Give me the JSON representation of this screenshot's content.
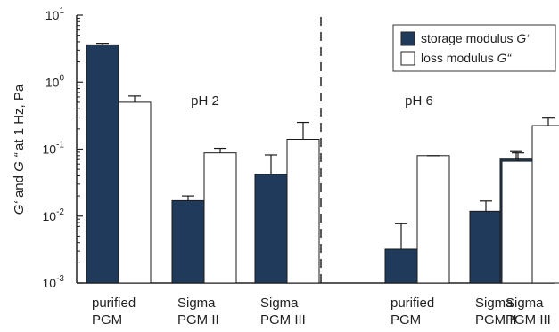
{
  "chart_data": {
    "type": "bar",
    "yscale": "log",
    "ylim": [
      0.001,
      10
    ],
    "ylabel": "G' and G'' at 1 Hz, Pa",
    "ylabel_parts": [
      "G‘",
      " and ",
      "G",
      " “",
      "at 1 Hz, Pa"
    ],
    "y_ticks": [
      {
        "base": "10",
        "exp": "1"
      },
      {
        "base": "10",
        "exp": "0"
      },
      {
        "base": "10",
        "exp": "-1"
      },
      {
        "base": "10",
        "exp": "-2"
      },
      {
        "base": "10",
        "exp": "-3"
      }
    ],
    "groups": [
      "pH 2",
      "pH 6"
    ],
    "categories": [
      {
        "line1": "purified",
        "line2": "PGM"
      },
      {
        "line1": "Sigma",
        "line2": "PGM II"
      },
      {
        "line1": "Sigma",
        "line2": "PGM III"
      },
      {
        "line1": "purified",
        "line2": "PGM"
      },
      {
        "line1": "Sigma",
        "line2": "PGM II"
      },
      {
        "line1": "Sigma",
        "line2": "PGM III"
      }
    ],
    "series": [
      {
        "name": "storage modulus G'",
        "label_text": "storage modulus ",
        "label_symbol": "G‘",
        "color": "#1f3a5a",
        "values": [
          3.6,
          0.017,
          0.042,
          0.0032,
          0.0118,
          0.071
        ],
        "errors_upper": [
          3.8,
          0.02,
          0.082,
          0.0077,
          0.0168,
          0.092
        ]
      },
      {
        "name": "loss modulus G''",
        "label_text": "loss modulus ",
        "label_symbol": "G“",
        "color": "#ffffff",
        "values": [
          0.5,
          0.088,
          0.14,
          0.08,
          0.066,
          0.225
        ],
        "errors_upper": [
          0.62,
          0.103,
          0.25,
          0.08,
          0.088,
          0.29
        ]
      }
    ],
    "divider_after_category": 2,
    "legend_position": "top-right",
    "grid": false
  }
}
